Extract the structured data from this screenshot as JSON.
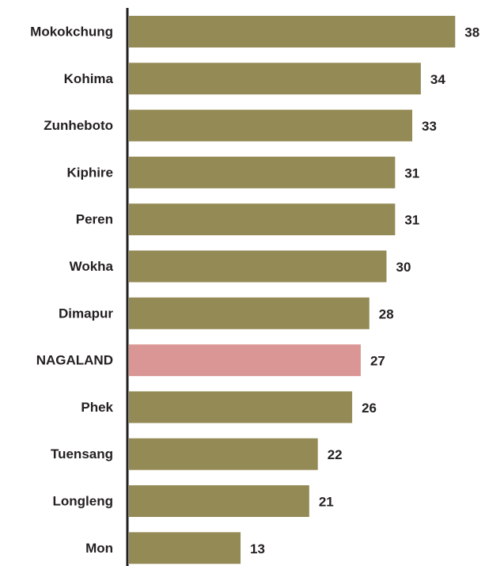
{
  "chart_data": {
    "type": "bar",
    "orientation": "horizontal",
    "categories": [
      "Mokokchung",
      "Kohima",
      "Zunheboto",
      "Kiphire",
      "Peren",
      "Wokha",
      "Dimapur",
      "NAGALAND",
      "Phek",
      "Tuensang",
      "Longleng",
      "Mon"
    ],
    "values": [
      38,
      34,
      33,
      31,
      31,
      30,
      28,
      27,
      26,
      22,
      21,
      13
    ],
    "colors": [
      "#938a55",
      "#938a55",
      "#938a55",
      "#938a55",
      "#938a55",
      "#938a55",
      "#938a55",
      "#d99694",
      "#938a55",
      "#938a55",
      "#938a55",
      "#938a55"
    ]
  }
}
